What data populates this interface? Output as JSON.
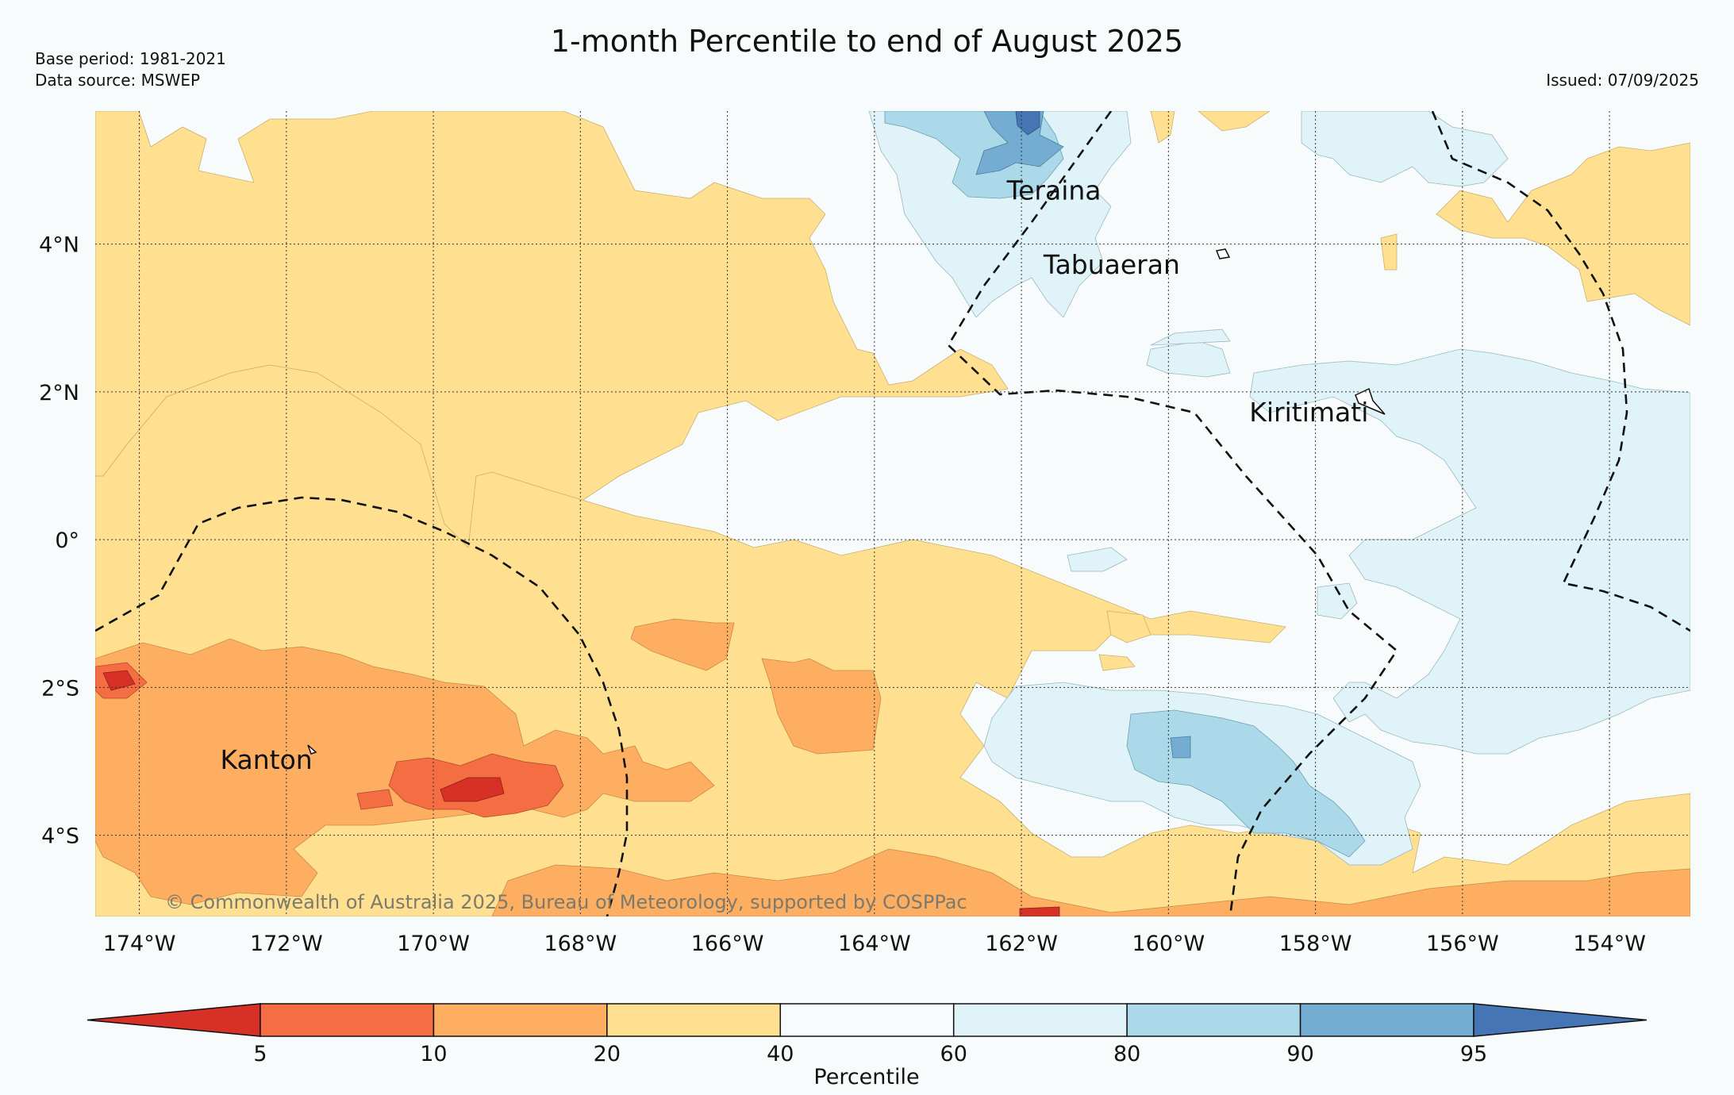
{
  "header": {
    "title": "1-month Percentile to end of August 2025",
    "base_period": "Base period: 1981-2021",
    "data_source": "Data source: MSWEP",
    "issued": "Issued: 07/09/2025"
  },
  "map": {
    "lon_range": [
      -174.6,
      -152.9
    ],
    "lat_range": [
      -5.1,
      5.8
    ],
    "lon_ticks": [
      {
        "value": -174,
        "label": "174°W"
      },
      {
        "value": -172,
        "label": "172°W"
      },
      {
        "value": -170,
        "label": "170°W"
      },
      {
        "value": -168,
        "label": "168°W"
      },
      {
        "value": -166,
        "label": "166°W"
      },
      {
        "value": -164,
        "label": "164°W"
      },
      {
        "value": -162,
        "label": "162°W"
      },
      {
        "value": -160,
        "label": "160°W"
      },
      {
        "value": -158,
        "label": "158°W"
      },
      {
        "value": -156,
        "label": "156°W"
      },
      {
        "value": -154,
        "label": "154°W"
      }
    ],
    "lat_ticks": [
      {
        "value": 4,
        "label": "4°N"
      },
      {
        "value": 2,
        "label": "2°N"
      },
      {
        "value": 0,
        "label": "0°"
      },
      {
        "value": -2,
        "label": "2°S"
      },
      {
        "value": -4,
        "label": "4°S"
      }
    ],
    "places": [
      {
        "name": "Teraina",
        "lon": -162.2,
        "lat": 4.6
      },
      {
        "name": "Tabuaeran",
        "lon": -161.7,
        "lat": 3.6
      },
      {
        "name": "Kiritimati",
        "lon": -158.9,
        "lat": 1.6
      },
      {
        "name": "Kanton",
        "lon": -172.9,
        "lat": -3.1
      }
    ],
    "copyright": "© Commonwealth of Australia 2025, Bureau of Meteorology, supported by COSPPac"
  },
  "colorbar": {
    "label": "Percentile",
    "ticks": [
      "5",
      "10",
      "20",
      "40",
      "60",
      "80",
      "90",
      "95"
    ],
    "colors": {
      "below_5": "#d73027",
      "5_10": "#f46d43",
      "10_20": "#fdae61",
      "20_40": "#fee090",
      "40_60": "#f7fbfc",
      "60_80": "#e0f3f8",
      "80_90": "#abd9e9",
      "90_95": "#74add1",
      "above_95": "#4575b4"
    }
  }
}
